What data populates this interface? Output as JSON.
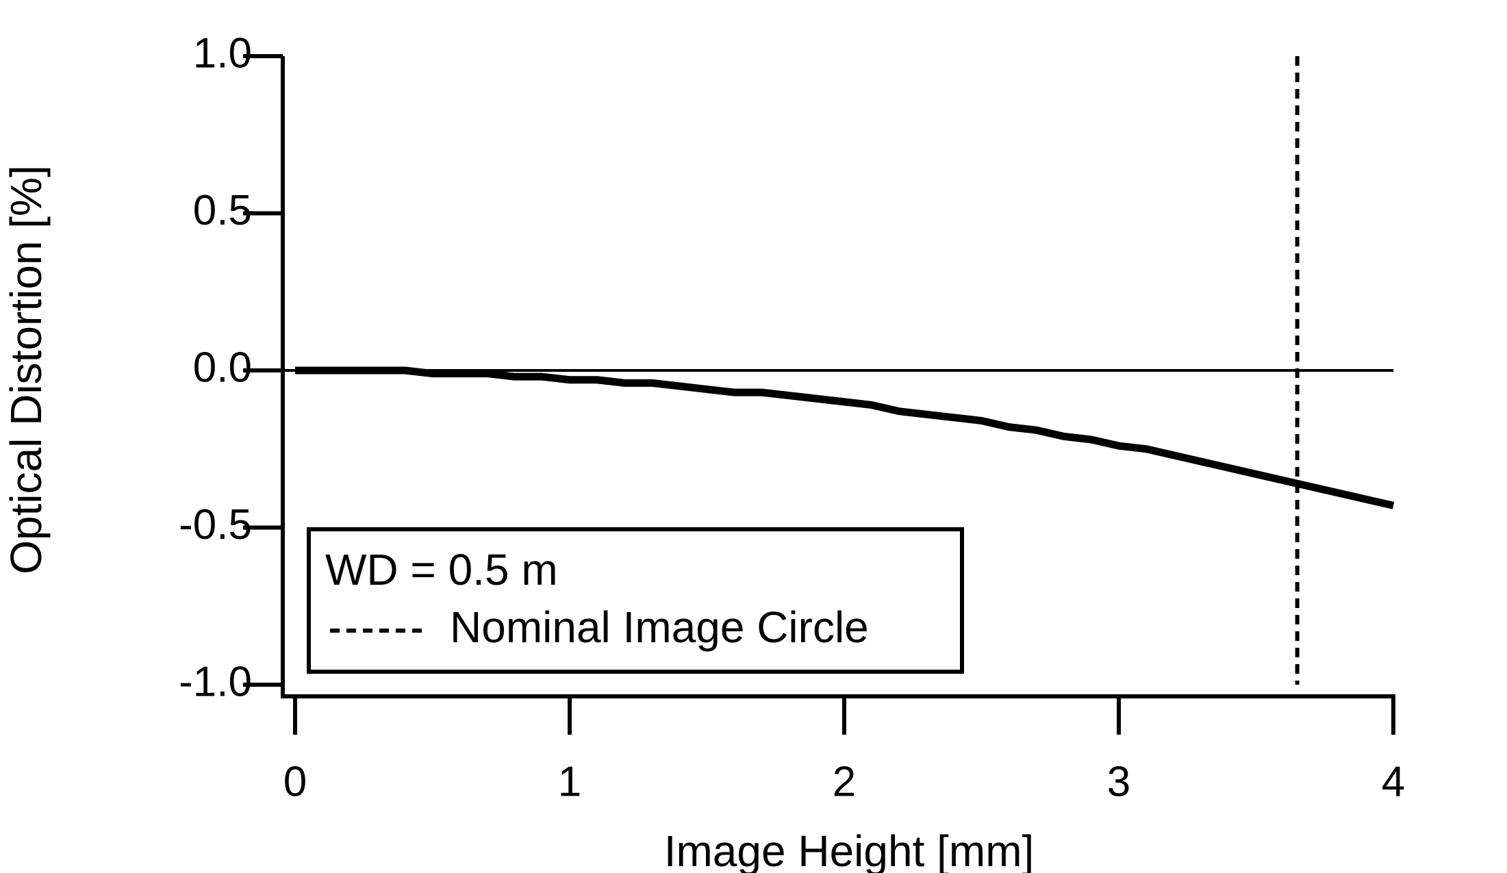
{
  "chart_data": {
    "type": "line",
    "xlabel": "Image Height [mm]",
    "ylabel": "Optical Distortion [%]",
    "xlim": [
      0,
      4
    ],
    "ylim": [
      -1.0,
      1.0
    ],
    "xticks": [
      0,
      1,
      2,
      3,
      4
    ],
    "yticks": [
      {
        "value": -1.0,
        "label": "-1.0"
      },
      {
        "value": -0.5,
        "label": "-0.5"
      },
      {
        "value": 0.0,
        "label": "0.0"
      },
      {
        "value": 0.5,
        "label": "0.5"
      },
      {
        "value": 1.0,
        "label": "1.0"
      }
    ],
    "hline": 0,
    "vline": {
      "name": "Nominal Image Circle",
      "x": 3.65
    },
    "series": [
      {
        "name": "WD = 0.5 m",
        "color": "#000000",
        "x": [
          0,
          0.4,
          0.5,
          0.7,
          0.8,
          0.9,
          1.0,
          1.1,
          1.2,
          1.3,
          1.5,
          1.6,
          1.7,
          2.0,
          2.1,
          2.2,
          2.5,
          2.6,
          2.7,
          2.8,
          2.9,
          3.0,
          3.1,
          3.5,
          4.0
        ],
        "values": [
          0,
          0,
          -0.01,
          -0.01,
          -0.02,
          -0.02,
          -0.03,
          -0.03,
          -0.04,
          -0.04,
          -0.06,
          -0.07,
          -0.07,
          -0.1,
          -0.11,
          -0.13,
          -0.16,
          -0.18,
          -0.19,
          -0.21,
          -0.22,
          -0.24,
          -0.25,
          -0.33,
          -0.43
        ]
      }
    ]
  }
}
